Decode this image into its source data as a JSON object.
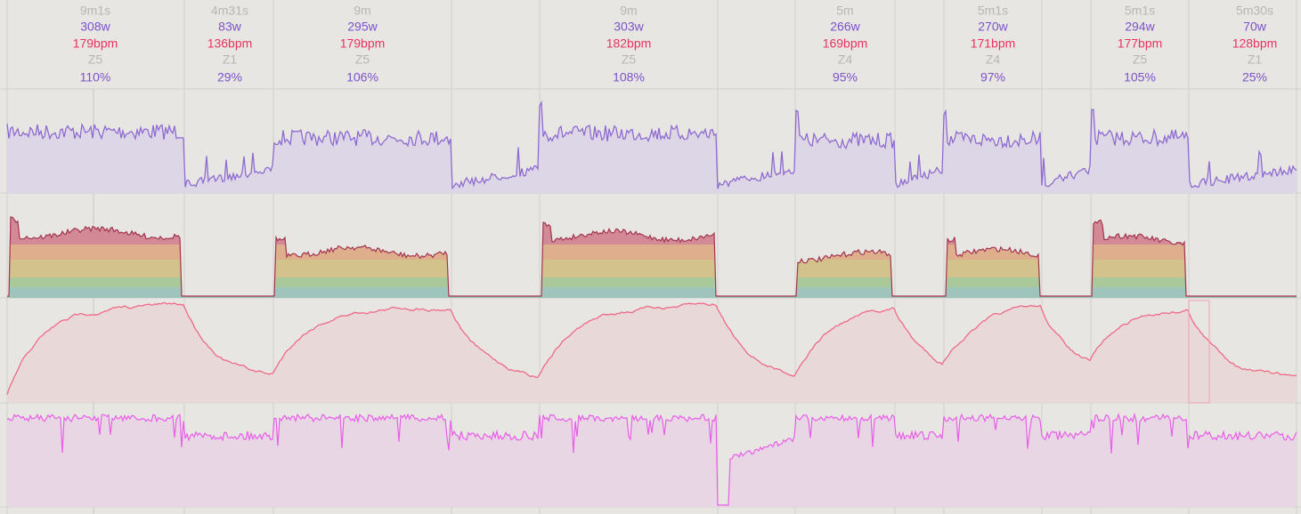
{
  "intervals": [
    {
      "duration": "9m1s",
      "power": "308w",
      "heart_rate": "179bpm",
      "zone": "Z5",
      "percent": "110%"
    },
    {
      "duration": "4m31s",
      "power": "83w",
      "heart_rate": "136bpm",
      "zone": "Z1",
      "percent": "29%"
    },
    {
      "duration": "9m",
      "power": "295w",
      "heart_rate": "179bpm",
      "zone": "Z5",
      "percent": "106%"
    },
    {
      "duration": "9m",
      "power": "303w",
      "heart_rate": "182bpm",
      "zone": "Z5",
      "percent": "108%"
    },
    {
      "duration": "5m",
      "power": "266w",
      "heart_rate": "169bpm",
      "zone": "Z4",
      "percent": "95%"
    },
    {
      "duration": "5m1s",
      "power": "270w",
      "heart_rate": "171bpm",
      "zone": "Z4",
      "percent": "97%"
    },
    {
      "duration": "5m1s",
      "power": "294w",
      "heart_rate": "177bpm",
      "zone": "Z5",
      "percent": "105%"
    },
    {
      "duration": "5m30s",
      "power": "70w",
      "heart_rate": "128bpm",
      "zone": "Z1",
      "percent": "25%"
    }
  ]
}
